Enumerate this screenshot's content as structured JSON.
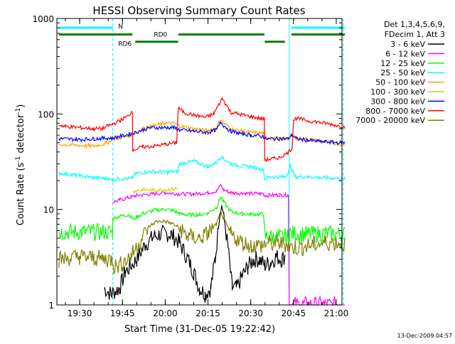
{
  "chart_data": {
    "type": "line",
    "title": "HESSI Observing Summary Count Rates",
    "xlabel": "Start Time (31-Dec-05 19:22:42)",
    "ylabel": "Count Rate (s",
    "ylabel_sup1": "-1",
    "ylabel_mid": " detector",
    "ylabel_sup2": "-1",
    "ylabel_end": ")",
    "y_scale": "log",
    "ylim": [
      1,
      1000
    ],
    "xlim": [
      "19:22",
      "21:02"
    ],
    "grid": false,
    "legend_placement": "right",
    "timestamp": "13-Dec-2009 04:57",
    "legend_header": [
      "Det 1,3,4,5,6,9,",
      "FDecim 1, Att 3"
    ],
    "x_ticks": [
      {
        "minute": 30,
        "label": "19:30"
      },
      {
        "minute": 45,
        "label": "19:45"
      },
      {
        "minute": 60,
        "label": "20:00"
      },
      {
        "minute": 75,
        "label": "20:15"
      },
      {
        "minute": 90,
        "label": "20:30"
      },
      {
        "minute": 105,
        "label": "20:45"
      },
      {
        "minute": 120,
        "label": "21:00"
      }
    ],
    "y_ticks": [
      {
        "value": 1,
        "label": "1"
      },
      {
        "value": 10,
        "label": "10"
      },
      {
        "value": 100,
        "label": "100"
      },
      {
        "value": 1000,
        "label": "1000"
      }
    ],
    "time_markers": [
      {
        "minute": 41.6,
        "label": "",
        "color": "#00ffff",
        "style": "dashed"
      },
      {
        "minute": 103.5,
        "label": "",
        "color": "#00ffff",
        "style": "solid"
      },
      {
        "minute": 122.5,
        "label": "",
        "color": "#00ffff",
        "style": "dashed"
      }
    ],
    "flag_bars": [
      {
        "label": "N",
        "color": "#00ffff",
        "segments": [
          [
            22.7,
            41.6
          ],
          [
            104.3,
            123
          ]
        ],
        "level": 800
      },
      {
        "label": "RD0",
        "color": "#008000",
        "segments": [
          [
            22.7,
            48.5
          ],
          [
            64.6,
            94.8
          ],
          [
            104.3,
            123
          ]
        ],
        "level": 680
      },
      {
        "label": "RD6",
        "color": "#008000",
        "segments": [
          [
            49.5,
            64.5
          ],
          [
            94.9,
            102
          ]
        ],
        "level": 570
      }
    ],
    "series": [
      {
        "name": "3 - 6 keV",
        "color": "#000000",
        "points": [
          [
            22.7,
            null
          ],
          [
            38,
            null
          ],
          [
            38.5,
            1.5
          ],
          [
            41,
            1.3
          ],
          [
            44,
            1.5
          ],
          [
            46,
            2.2
          ],
          [
            50,
            3
          ],
          [
            53,
            4.3
          ],
          [
            56,
            5.2
          ],
          [
            59,
            5.6
          ],
          [
            62,
            5.5
          ],
          [
            65,
            4.5
          ],
          [
            68,
            3
          ],
          [
            70,
            2.2
          ],
          [
            72,
            1.5
          ],
          [
            74,
            1.3
          ],
          [
            76,
            1.5
          ],
          [
            77.5,
            3
          ],
          [
            79,
            8
          ],
          [
            79.8,
            11
          ],
          [
            80.5,
            9
          ],
          [
            82,
            4
          ],
          [
            83.5,
            1.5
          ],
          [
            85,
            1.5
          ],
          [
            87,
            2
          ],
          [
            89,
            2.5
          ],
          [
            91,
            3
          ],
          [
            93,
            3
          ],
          [
            95,
            2.6
          ],
          [
            97,
            2.8
          ],
          [
            99,
            3.2
          ],
          [
            101,
            3
          ],
          [
            102,
            3.3
          ],
          [
            102.5,
            null
          ],
          [
            123,
            null
          ]
        ]
      },
      {
        "name": "6 - 12 keV",
        "color": "#ff00ff",
        "points": [
          [
            22.7,
            null
          ],
          [
            41.4,
            null
          ],
          [
            41.5,
            12
          ],
          [
            44,
            12.5
          ],
          [
            48,
            13.5
          ],
          [
            50,
            14
          ],
          [
            55,
            14.5
          ],
          [
            60,
            15
          ],
          [
            65,
            14.5
          ],
          [
            70,
            14.5
          ],
          [
            75,
            15
          ],
          [
            78,
            15.5
          ],
          [
            79.5,
            18
          ],
          [
            80.5,
            16
          ],
          [
            83,
            15
          ],
          [
            87,
            14.8
          ],
          [
            90,
            14.7
          ],
          [
            94.5,
            14.6
          ],
          [
            95,
            14
          ],
          [
            100,
            14.2
          ],
          [
            103,
            14.2
          ],
          [
            103.2,
            14
          ],
          [
            103.5,
            1
          ],
          [
            123,
            1
          ]
        ]
      },
      {
        "name": "12 - 25 keV",
        "color": "#00ff00",
        "points": [
          [
            22.7,
            5.8
          ],
          [
            41.5,
            5.8
          ],
          [
            41.6,
            8
          ],
          [
            44,
            8.5
          ],
          [
            47,
            8.8
          ],
          [
            49,
            8
          ],
          [
            52,
            9
          ],
          [
            56,
            9.8
          ],
          [
            60,
            10
          ],
          [
            63,
            9.7
          ],
          [
            65,
            9
          ],
          [
            68,
            8.8
          ],
          [
            72,
            8.8
          ],
          [
            75,
            9.2
          ],
          [
            78,
            10.5
          ],
          [
            79.5,
            13.5
          ],
          [
            80.5,
            12
          ],
          [
            83,
            9.5
          ],
          [
            87,
            9
          ],
          [
            90,
            8.9
          ],
          [
            94.5,
            8.9
          ],
          [
            95,
            5.2
          ],
          [
            100,
            5.1
          ],
          [
            103,
            5.2
          ],
          [
            103.6,
            5.6
          ],
          [
            110,
            5.5
          ],
          [
            116,
            5.6
          ],
          [
            122,
            5.5
          ],
          [
            123,
            5.5
          ]
        ]
      },
      {
        "name": "25 - 50 keV",
        "color": "#00ffff",
        "points": [
          [
            22.7,
            24
          ],
          [
            30,
            22.5
          ],
          [
            35,
            21.5
          ],
          [
            40,
            21
          ],
          [
            41.5,
            20
          ],
          [
            41.6,
            20.5
          ],
          [
            44,
            21
          ],
          [
            48,
            21
          ],
          [
            48.5,
            21.5
          ],
          [
            50,
            24
          ],
          [
            55,
            25
          ],
          [
            60,
            24.5
          ],
          [
            64.5,
            25
          ],
          [
            65,
            30
          ],
          [
            70,
            32
          ],
          [
            75,
            28
          ],
          [
            78,
            31
          ],
          [
            79.5,
            36
          ],
          [
            80.5,
            34
          ],
          [
            83,
            30
          ],
          [
            87,
            28.5
          ],
          [
            90,
            28
          ],
          [
            94.5,
            26
          ],
          [
            94.9,
            21
          ],
          [
            97,
            22
          ],
          [
            100,
            22
          ],
          [
            102,
            22
          ],
          [
            103,
            24
          ],
          [
            104,
            29
          ],
          [
            105.5,
            22
          ],
          [
            110,
            22
          ],
          [
            116,
            21.5
          ],
          [
            122,
            21
          ],
          [
            123,
            21
          ]
        ]
      },
      {
        "name": "50 - 100 keV",
        "color": "#ffa500",
        "points": [
          [
            22.7,
            48
          ],
          [
            30,
            47
          ],
          [
            35,
            46
          ],
          [
            40,
            50
          ],
          [
            41.5,
            55
          ],
          [
            44,
            56
          ],
          [
            48,
            60
          ],
          [
            49,
            62
          ],
          [
            52,
            70
          ],
          [
            55,
            74
          ],
          [
            60,
            80
          ],
          [
            63,
            80
          ],
          [
            65,
            75
          ],
          [
            70,
            70
          ],
          [
            75,
            67
          ],
          [
            78,
            72
          ],
          [
            79.5,
            88
          ],
          [
            80.5,
            80
          ],
          [
            83,
            70
          ],
          [
            87,
            66
          ],
          [
            90,
            64
          ],
          [
            94.5,
            63
          ],
          [
            95,
            56
          ],
          [
            100,
            55
          ],
          [
            103,
            55
          ],
          [
            104.5,
            60
          ],
          [
            106,
            56
          ],
          [
            110,
            54
          ],
          [
            116,
            51
          ],
          [
            122,
            48
          ],
          [
            123,
            48
          ]
        ]
      },
      {
        "name": "100 - 300 keV",
        "color": "#d4d400",
        "points": [
          [
            22.7,
            null
          ],
          [
            48.5,
            null
          ],
          [
            48.6,
            15.5
          ],
          [
            52,
            16
          ],
          [
            56,
            16
          ],
          [
            60,
            16
          ],
          [
            64.5,
            16.5
          ],
          [
            64.6,
            null
          ],
          [
            123,
            null
          ]
        ]
      },
      {
        "name": "300 - 800 keV",
        "color": "#0000ff",
        "points": [
          [
            22.7,
            55
          ],
          [
            30,
            54
          ],
          [
            35,
            55
          ],
          [
            40,
            56
          ],
          [
            41.5,
            56
          ],
          [
            44,
            58
          ],
          [
            48,
            62
          ],
          [
            49,
            63
          ],
          [
            52,
            68
          ],
          [
            55,
            72
          ],
          [
            60,
            72
          ],
          [
            63,
            72
          ],
          [
            65,
            68
          ],
          [
            70,
            66
          ],
          [
            75,
            64
          ],
          [
            78,
            68
          ],
          [
            79.5,
            82
          ],
          [
            80.5,
            76
          ],
          [
            83,
            66
          ],
          [
            87,
            62
          ],
          [
            90,
            60
          ],
          [
            94.5,
            58
          ],
          [
            95,
            55
          ],
          [
            100,
            55
          ],
          [
            103,
            55
          ],
          [
            104.5,
            60
          ],
          [
            106,
            55
          ],
          [
            110,
            53
          ],
          [
            116,
            51
          ],
          [
            122,
            50
          ],
          [
            123,
            50
          ]
        ]
      },
      {
        "name": "800 - 7000 keV",
        "color": "#ff0000",
        "points": [
          [
            22.7,
            77
          ],
          [
            25,
            74
          ],
          [
            30,
            72
          ],
          [
            35,
            70
          ],
          [
            38,
            70
          ],
          [
            40,
            75
          ],
          [
            41.5,
            78
          ],
          [
            44,
            85
          ],
          [
            47,
            95
          ],
          [
            48.5,
            108
          ],
          [
            48.6,
            42
          ],
          [
            52,
            45
          ],
          [
            56,
            46
          ],
          [
            60,
            48
          ],
          [
            64,
            50
          ],
          [
            64.6,
            115
          ],
          [
            67,
            102
          ],
          [
            70,
            98
          ],
          [
            74,
            92
          ],
          [
            77,
            100
          ],
          [
            79,
            128
          ],
          [
            80,
            145
          ],
          [
            81,
            130
          ],
          [
            83,
            104
          ],
          [
            87,
            98
          ],
          [
            90,
            94
          ],
          [
            94.8,
            88
          ],
          [
            94.9,
            33
          ],
          [
            98,
            34
          ],
          [
            100,
            35
          ],
          [
            103,
            39
          ],
          [
            104.5,
            44
          ],
          [
            105,
            86
          ],
          [
            106,
            90
          ],
          [
            110,
            85
          ],
          [
            116,
            80
          ],
          [
            122,
            74
          ],
          [
            123,
            72
          ]
        ]
      },
      {
        "name": "7000 - 20000 keV",
        "color": "#808000",
        "points": [
          [
            22.7,
            3
          ],
          [
            30,
            3.2
          ],
          [
            35,
            3.1
          ],
          [
            40,
            3
          ],
          [
            41.5,
            3
          ],
          [
            42,
            2.5
          ],
          [
            45,
            2.7
          ],
          [
            48,
            3.3
          ],
          [
            51,
            4.5
          ],
          [
            54,
            6.5
          ],
          [
            57,
            7.5
          ],
          [
            60,
            7.5
          ],
          [
            63,
            7
          ],
          [
            66,
            6
          ],
          [
            68,
            5.2
          ],
          [
            72,
            5
          ],
          [
            75,
            5.6
          ],
          [
            78,
            7
          ],
          [
            79.5,
            9.5
          ],
          [
            80.5,
            8
          ],
          [
            83,
            5.5
          ],
          [
            87,
            4.5
          ],
          [
            90,
            4.2
          ],
          [
            94.5,
            4.2
          ],
          [
            95,
            4.4
          ],
          [
            100,
            4.4
          ],
          [
            103,
            4.3
          ],
          [
            103.5,
            4
          ],
          [
            108,
            4
          ],
          [
            112,
            4.3
          ],
          [
            116,
            4.5
          ],
          [
            122,
            4.5
          ],
          [
            123,
            4.3
          ]
        ]
      }
    ]
  }
}
